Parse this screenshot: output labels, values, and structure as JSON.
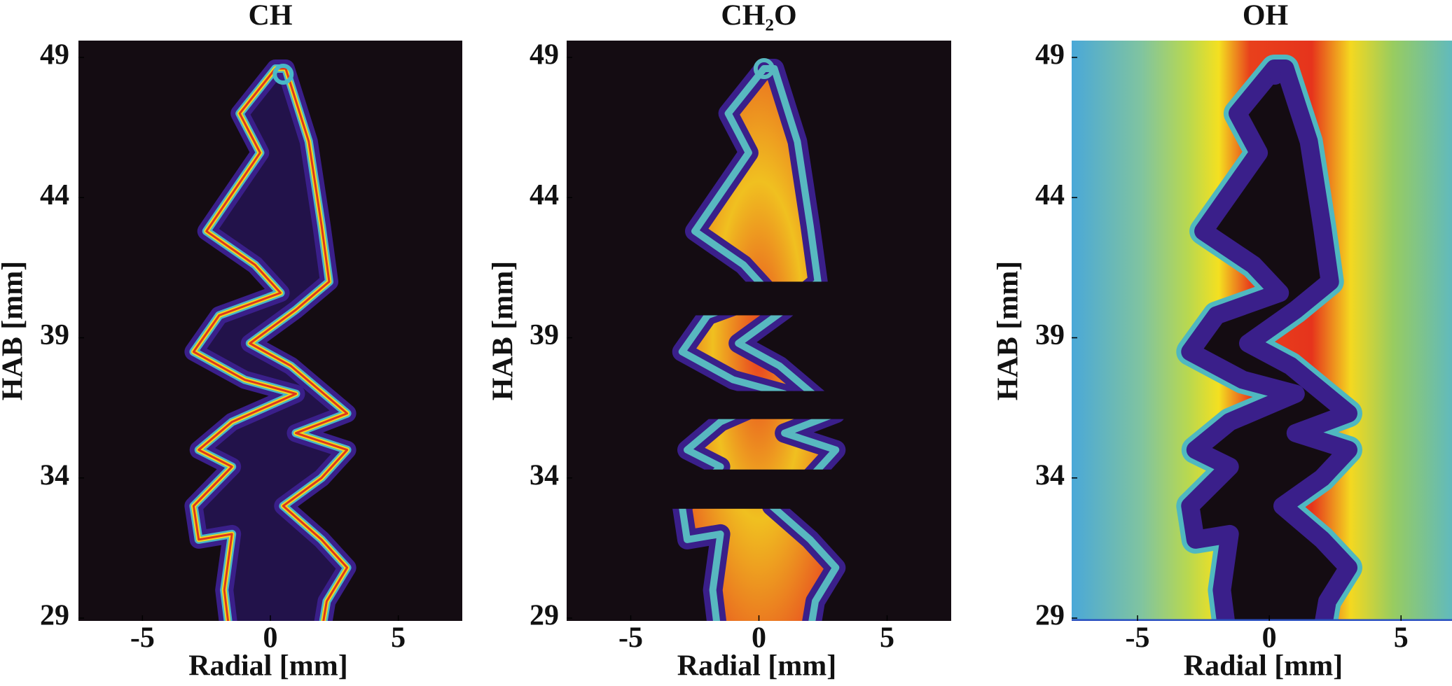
{
  "chart_data": [
    {
      "type": "image",
      "title": "CH",
      "xlabel": "Radial [mm]",
      "ylabel": "HAB [mm]",
      "xlim": [
        -7.5,
        7.5
      ],
      "ylim": [
        28.9,
        49.6
      ],
      "xticks": [
        -5,
        0,
        5
      ],
      "yticks": [
        29,
        34,
        39,
        44,
        49
      ]
    },
    {
      "type": "image",
      "title": "CH₂O",
      "xlabel": "Radial [mm]",
      "ylabel": "HAB [mm]",
      "xlim": [
        -7.5,
        7.5
      ],
      "ylim": [
        28.9,
        49.6
      ],
      "xticks": [
        -5,
        0,
        5
      ],
      "yticks": [
        29,
        34,
        39,
        44,
        49
      ]
    },
    {
      "type": "image",
      "title": "OH",
      "xlabel": "Radial [mm]",
      "ylabel": "HAB [mm]",
      "xlim": [
        -7.5,
        7.2
      ],
      "ylim": [
        28.9,
        49.6
      ],
      "xticks": [
        -5,
        0,
        5
      ],
      "yticks": [
        29,
        34,
        39,
        44,
        49
      ]
    }
  ]
}
